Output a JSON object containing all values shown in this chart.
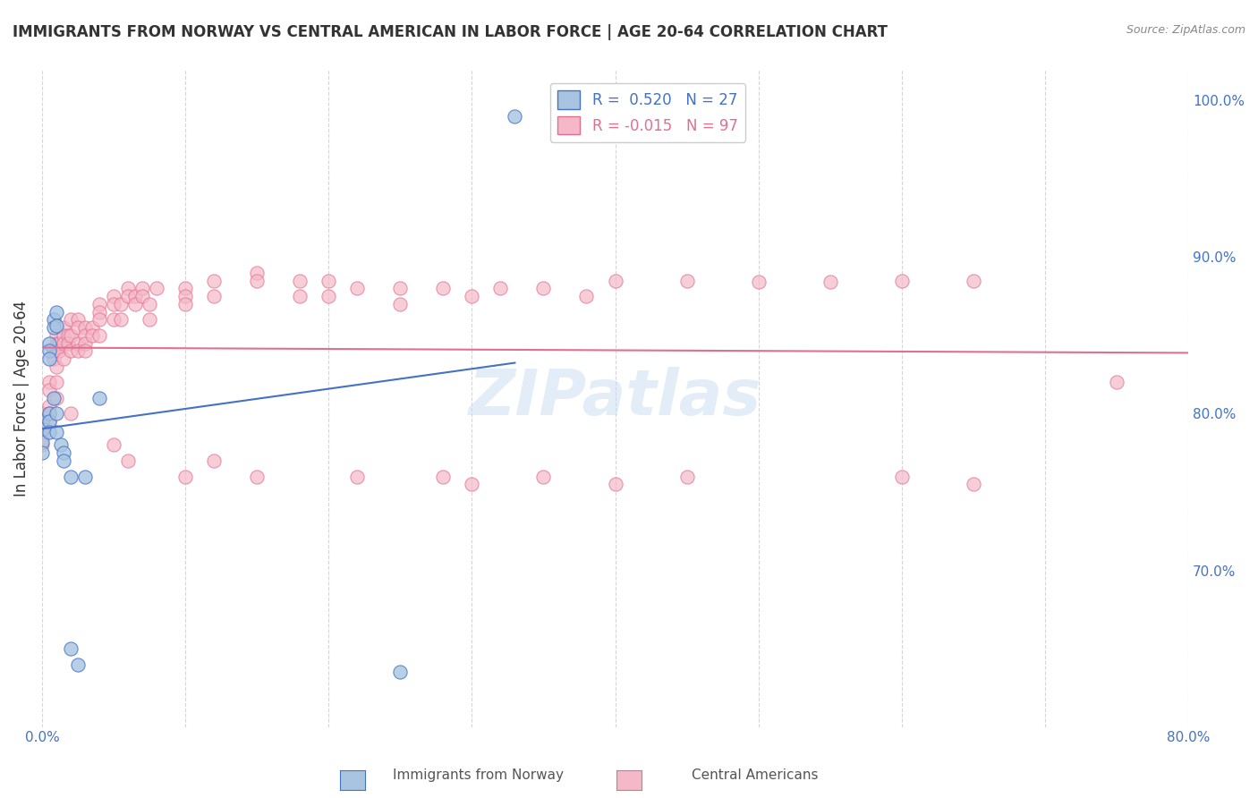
{
  "title": "IMMIGRANTS FROM NORWAY VS CENTRAL AMERICAN IN LABOR FORCE | AGE 20-64 CORRELATION CHART",
  "source": "Source: ZipAtlas.com",
  "xlabel": "",
  "ylabel": "In Labor Force | Age 20-64",
  "xlim": [
    0.0,
    0.8
  ],
  "ylim": [
    0.6,
    1.02
  ],
  "xticks": [
    0.0,
    0.1,
    0.2,
    0.3,
    0.4,
    0.5,
    0.6,
    0.7,
    0.8
  ],
  "xticklabels": [
    "0.0%",
    "",
    "",
    "",
    "",
    "",
    "",
    "",
    "80.0%"
  ],
  "yticks_right": [
    0.7,
    0.8,
    0.9,
    1.0
  ],
  "ytick_right_labels": [
    "70.0%",
    "80.0%",
    "90.0%",
    "100.0%"
  ],
  "legend_r_norway": "0.520",
  "legend_n_norway": "27",
  "legend_r_central": "-0.015",
  "legend_n_central": "97",
  "norway_color": "#a8c4e0",
  "norway_line_color": "#4472c4",
  "central_color": "#f4b8c8",
  "central_line_color": "#e07090",
  "watermark": "ZIPatlas",
  "norway_x": [
    0.0,
    0.0,
    0.0,
    0.0,
    0.005,
    0.005,
    0.005,
    0.005,
    0.005,
    0.005,
    0.008,
    0.008,
    0.008,
    0.01,
    0.01,
    0.01,
    0.01,
    0.013,
    0.015,
    0.015,
    0.02,
    0.02,
    0.025,
    0.03,
    0.04,
    0.25,
    0.33
  ],
  "norway_y": [
    0.795,
    0.79,
    0.782,
    0.775,
    0.845,
    0.84,
    0.835,
    0.8,
    0.795,
    0.788,
    0.86,
    0.855,
    0.81,
    0.865,
    0.856,
    0.8,
    0.788,
    0.78,
    0.775,
    0.77,
    0.76,
    0.65,
    0.64,
    0.76,
    0.81,
    0.635,
    0.99
  ],
  "central_x": [
    0.0,
    0.0,
    0.0,
    0.0,
    0.0,
    0.005,
    0.005,
    0.005,
    0.005,
    0.005,
    0.008,
    0.008,
    0.01,
    0.01,
    0.01,
    0.01,
    0.01,
    0.01,
    0.012,
    0.012,
    0.015,
    0.015,
    0.015,
    0.015,
    0.018,
    0.018,
    0.02,
    0.02,
    0.02,
    0.02,
    0.025,
    0.025,
    0.025,
    0.025,
    0.03,
    0.03,
    0.03,
    0.03,
    0.035,
    0.035,
    0.04,
    0.04,
    0.04,
    0.04,
    0.05,
    0.05,
    0.05,
    0.05,
    0.055,
    0.055,
    0.06,
    0.06,
    0.06,
    0.065,
    0.065,
    0.07,
    0.07,
    0.075,
    0.075,
    0.08,
    0.1,
    0.1,
    0.1,
    0.1,
    0.12,
    0.12,
    0.12,
    0.15,
    0.15,
    0.15,
    0.18,
    0.18,
    0.2,
    0.2,
    0.22,
    0.22,
    0.25,
    0.25,
    0.28,
    0.28,
    0.3,
    0.3,
    0.32,
    0.35,
    0.35,
    0.38,
    0.4,
    0.4,
    0.45,
    0.45,
    0.5,
    0.55,
    0.6,
    0.6,
    0.65,
    0.65,
    0.75
  ],
  "central_y": [
    0.8,
    0.795,
    0.79,
    0.785,
    0.78,
    0.82,
    0.815,
    0.805,
    0.8,
    0.795,
    0.84,
    0.835,
    0.85,
    0.845,
    0.84,
    0.83,
    0.82,
    0.81,
    0.845,
    0.84,
    0.855,
    0.85,
    0.845,
    0.835,
    0.85,
    0.845,
    0.86,
    0.85,
    0.84,
    0.8,
    0.86,
    0.855,
    0.845,
    0.84,
    0.855,
    0.85,
    0.845,
    0.84,
    0.855,
    0.85,
    0.87,
    0.865,
    0.86,
    0.85,
    0.875,
    0.87,
    0.86,
    0.78,
    0.87,
    0.86,
    0.88,
    0.875,
    0.77,
    0.875,
    0.87,
    0.88,
    0.875,
    0.87,
    0.86,
    0.88,
    0.88,
    0.875,
    0.87,
    0.76,
    0.885,
    0.875,
    0.77,
    0.89,
    0.885,
    0.76,
    0.885,
    0.875,
    0.885,
    0.875,
    0.88,
    0.76,
    0.88,
    0.87,
    0.88,
    0.76,
    0.875,
    0.755,
    0.88,
    0.88,
    0.76,
    0.875,
    0.885,
    0.755,
    0.885,
    0.76,
    0.884,
    0.884,
    0.885,
    0.76,
    0.885,
    0.755,
    0.82
  ]
}
